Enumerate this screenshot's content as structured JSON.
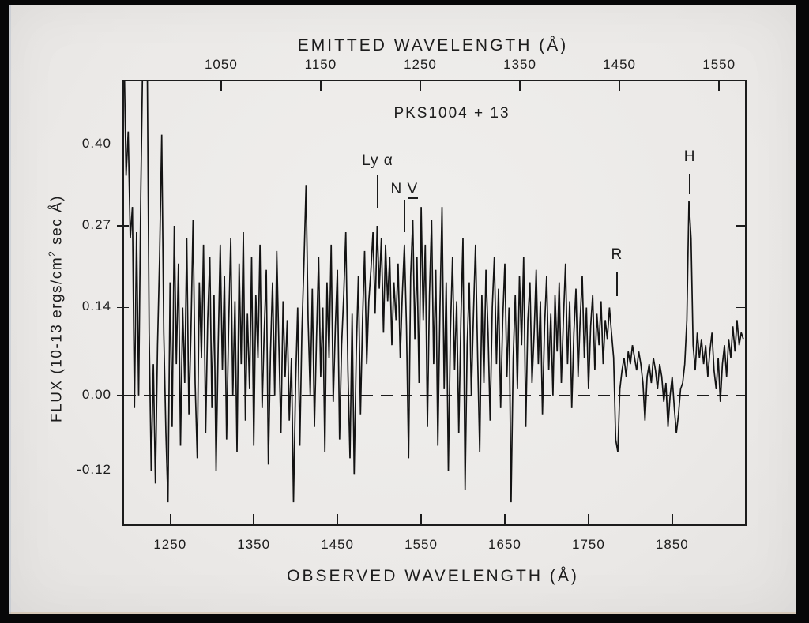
{
  "page": {
    "frame_color": "#070708",
    "paper_color": "#ebe9e7",
    "ink_color": "#1c1c1c"
  },
  "chart_data": {
    "type": "line",
    "title": "PKS1004 + 13",
    "xlabel": "OBSERVED WAVELENGTH (Å)",
    "top_xlabel": "EMITTED WAVELENGTH (Å)",
    "ylabel": "FLUX (10-13 ergs/cm2 sec Å)",
    "ylabel_parts": {
      "pre": "FLUX (10-13 ergs/cm",
      "sup": "2",
      "post": " sec Å)"
    },
    "xlim": [
      1195,
      1937
    ],
    "ylim": [
      -0.205,
      0.5
    ],
    "grid": false,
    "legend": null,
    "line_color": "#131313",
    "zero_line": 0.0,
    "x_axis_ticks": [
      {
        "pos": 1250,
        "label": "1250"
      },
      {
        "pos": 1350,
        "label": "1350"
      },
      {
        "pos": 1450,
        "label": "1450"
      },
      {
        "pos": 1550,
        "label": "1550"
      },
      {
        "pos": 1650,
        "label": "1650"
      },
      {
        "pos": 1750,
        "label": "1750"
      },
      {
        "pos": 1850,
        "label": "1850"
      }
    ],
    "top_axis_ticks": [
      {
        "pos": 1311,
        "label": "1050"
      },
      {
        "pos": 1430,
        "label": "1150"
      },
      {
        "pos": 1549,
        "label": "1250"
      },
      {
        "pos": 1668,
        "label": "1350"
      },
      {
        "pos": 1787,
        "label": "1450"
      },
      {
        "pos": 1906,
        "label": "1550"
      }
    ],
    "y_axis_ticks": [
      {
        "v": 0.4,
        "label": "0.40"
      },
      {
        "v": 0.27,
        "label": "0.27"
      },
      {
        "v": 0.14,
        "label": "0.14"
      },
      {
        "v": 0.0,
        "label": "0.00"
      },
      {
        "v": -0.12,
        "label": "-0.12"
      }
    ],
    "annotations": [
      {
        "id": "lya",
        "text": "Ly α",
        "underline_text": "",
        "x": 1498,
        "label_flux": 0.372,
        "tick_top": 0.35,
        "tick_bottom": 0.298
      },
      {
        "id": "nv",
        "text": "N ",
        "underline_text": "V",
        "x": 1530,
        "label_flux": 0.326,
        "tick_top": 0.312,
        "tick_bottom": 0.26
      },
      {
        "id": "r",
        "text": "R",
        "underline_text": "",
        "x": 1784,
        "label_flux": 0.222,
        "tick_top": 0.196,
        "tick_bottom": 0.158
      },
      {
        "id": "h",
        "text": "H",
        "underline_text": "",
        "x": 1871,
        "label_flux": 0.378,
        "tick_top": 0.353,
        "tick_bottom": 0.32
      }
    ],
    "series": [
      {
        "name": "spectrum",
        "x_start": 1195,
        "x_step": 2.5,
        "y": [
          0.55,
          0.35,
          0.42,
          0.25,
          0.3,
          -0.02,
          0.26,
          0.0,
          0.32,
          0.55,
          0.62,
          0.58,
          0.1,
          -0.12,
          0.05,
          -0.14,
          0.08,
          0.22,
          0.415,
          0.1,
          -0.06,
          -0.17,
          0.18,
          -0.05,
          0.27,
          0.05,
          0.21,
          -0.08,
          0.14,
          0.02,
          0.25,
          -0.03,
          0.1,
          0.28,
          0.02,
          -0.1,
          0.18,
          0.06,
          0.24,
          -0.06,
          0.12,
          0.22,
          -0.02,
          0.16,
          -0.12,
          0.08,
          0.24,
          0.04,
          0.19,
          -0.07,
          0.11,
          0.25,
          0.0,
          0.15,
          -0.09,
          0.21,
          0.05,
          0.26,
          -0.04,
          0.13,
          0.01,
          0.22,
          -0.08,
          0.16,
          0.06,
          0.24,
          -0.02,
          0.1,
          0.2,
          -0.11,
          0.07,
          0.18,
          0.0,
          0.23,
          0.08,
          -0.06,
          0.15,
          0.03,
          0.12,
          -0.04,
          0.06,
          -0.17,
          0.02,
          0.14,
          -0.08,
          0.1,
          0.21,
          0.335,
          0.12,
          0.0,
          0.17,
          -0.05,
          0.09,
          0.22,
          0.03,
          0.14,
          -0.09,
          0.18,
          0.06,
          0.24,
          -0.01,
          0.11,
          0.2,
          -0.07,
          0.08,
          0.16,
          0.26,
          0.04,
          -0.1,
          0.13,
          -0.125,
          0.07,
          0.19,
          -0.03,
          0.12,
          0.23,
          0.05,
          0.15,
          0.2,
          0.26,
          0.13,
          0.27,
          0.17,
          0.25,
          0.1,
          0.24,
          0.15,
          0.22,
          0.08,
          0.18,
          0.12,
          0.21,
          0.06,
          0.16,
          0.24,
          0.11,
          -0.1,
          0.19,
          0.28,
          0.09,
          0.22,
          0.02,
          0.3,
          0.12,
          0.24,
          -0.05,
          0.16,
          0.28,
          0.05,
          0.2,
          -0.08,
          0.14,
          0.3,
          0.01,
          0.18,
          -0.12,
          0.1,
          0.22,
          0.04,
          0.15,
          -0.06,
          0.12,
          0.25,
          -0.15,
          0.08,
          0.18,
          0.0,
          0.13,
          0.24,
          0.06,
          -0.09,
          0.16,
          0.02,
          0.2,
          0.1,
          -0.04,
          0.14,
          0.22,
          0.05,
          0.17,
          -0.02,
          0.12,
          0.21,
          0.03,
          0.14,
          -0.17,
          0.06,
          0.16,
          0.01,
          0.19,
          0.08,
          0.22,
          -0.05,
          0.12,
          0.18,
          0.02,
          0.1,
          0.2,
          0.05,
          0.15,
          -0.03,
          0.11,
          0.19,
          0.04,
          0.13,
          0.0,
          0.16,
          0.07,
          0.18,
          0.02,
          0.12,
          0.21,
          0.05,
          0.15,
          -0.02,
          0.1,
          0.17,
          0.03,
          0.12,
          0.19,
          0.06,
          0.14,
          0.01,
          0.11,
          0.16,
          0.04,
          0.13,
          0.08,
          0.15,
          0.05,
          0.12,
          0.09,
          0.14,
          0.1,
          0.06,
          -0.07,
          -0.09,
          0.01,
          0.04,
          0.06,
          0.03,
          0.07,
          0.05,
          0.08,
          0.06,
          0.04,
          0.07,
          0.05,
          0.02,
          -0.04,
          0.03,
          0.05,
          0.02,
          0.06,
          0.04,
          0.01,
          0.05,
          0.03,
          -0.01,
          0.02,
          -0.05,
          0.0,
          0.03,
          -0.02,
          -0.06,
          -0.03,
          0.01,
          0.02,
          0.05,
          0.12,
          0.31,
          0.25,
          0.08,
          0.04,
          0.1,
          0.06,
          0.09,
          0.05,
          0.08,
          0.03,
          0.07,
          0.1,
          0.04,
          0.01,
          0.06,
          -0.01,
          0.05,
          0.08,
          0.03,
          0.09,
          0.06,
          0.11,
          0.07,
          0.12,
          0.08,
          0.1,
          0.09
        ]
      }
    ]
  }
}
